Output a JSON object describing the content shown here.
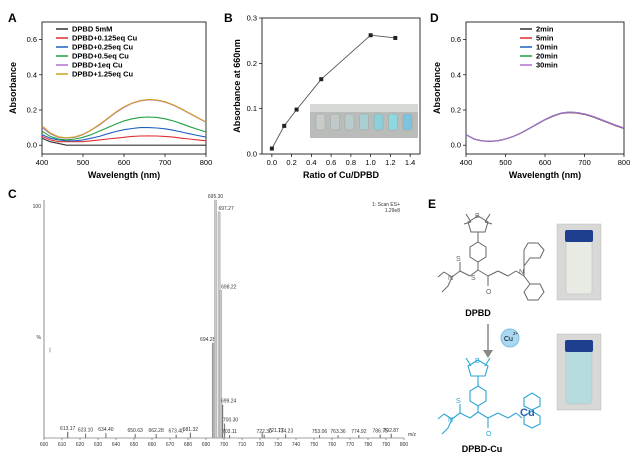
{
  "chart_data": [
    {
      "panel": "A",
      "type": "line",
      "xlabel": "Wavelength (nm)",
      "ylabel": "Absorbance",
      "xlim": [
        400,
        800
      ],
      "ylim": [
        -0.05,
        0.7
      ],
      "xticks": [
        "400",
        "500",
        "600",
        "700",
        "800"
      ],
      "yticks": [
        "0.0",
        "0.2",
        "0.4",
        "0.6"
      ],
      "legend_position": "top-left",
      "series": [
        {
          "name": "DPBD 5mM",
          "color": "#333333",
          "x": [
            400,
            420,
            440,
            460,
            480,
            500,
            520,
            540,
            560,
            580,
            600,
            620,
            640,
            660,
            680,
            700,
            720,
            740,
            760,
            780,
            800
          ],
          "values": [
            0.04,
            0.02,
            0.01,
            0.0,
            0.0,
            0.0,
            0.0,
            0.0,
            0.0,
            0.0,
            0.0,
            0.0,
            0.0,
            0.0,
            0.0,
            0.0,
            0.0,
            0.0,
            0.0,
            0.0,
            0.0
          ]
        },
        {
          "name": "DPBD+0.125eq Cu",
          "color": "#e03030",
          "x": [
            400,
            420,
            440,
            460,
            480,
            500,
            520,
            540,
            560,
            580,
            600,
            620,
            640,
            660,
            680,
            700,
            720,
            740,
            760,
            780,
            800
          ],
          "values": [
            0.05,
            0.03,
            0.02,
            0.02,
            0.02,
            0.02,
            0.025,
            0.03,
            0.035,
            0.04,
            0.045,
            0.05,
            0.052,
            0.053,
            0.052,
            0.05,
            0.046,
            0.04,
            0.035,
            0.03,
            0.025
          ]
        },
        {
          "name": "DPBD+0.25eq Cu",
          "color": "#2060c0",
          "x": [
            400,
            420,
            440,
            460,
            480,
            500,
            520,
            540,
            560,
            580,
            600,
            620,
            640,
            660,
            680,
            700,
            720,
            740,
            760,
            780,
            800
          ],
          "values": [
            0.06,
            0.04,
            0.03,
            0.025,
            0.025,
            0.03,
            0.04,
            0.05,
            0.065,
            0.078,
            0.088,
            0.095,
            0.1,
            0.1,
            0.098,
            0.093,
            0.085,
            0.075,
            0.065,
            0.055,
            0.046
          ]
        },
        {
          "name": "DPBD+0.5eq Cu",
          "color": "#20a040",
          "x": [
            400,
            420,
            440,
            460,
            480,
            500,
            520,
            540,
            560,
            580,
            600,
            620,
            640,
            660,
            680,
            700,
            720,
            740,
            760,
            780,
            800
          ],
          "values": [
            0.08,
            0.05,
            0.035,
            0.03,
            0.035,
            0.045,
            0.06,
            0.08,
            0.1,
            0.12,
            0.138,
            0.15,
            0.158,
            0.16,
            0.158,
            0.15,
            0.138,
            0.122,
            0.105,
            0.09,
            0.075
          ]
        },
        {
          "name": "DPBD+1eq Cu",
          "color": "#b070d0",
          "x": [
            400,
            420,
            440,
            460,
            480,
            500,
            520,
            540,
            560,
            580,
            600,
            620,
            640,
            660,
            680,
            700,
            720,
            740,
            760,
            780,
            800
          ],
          "values": [
            0.1,
            0.065,
            0.045,
            0.04,
            0.045,
            0.06,
            0.085,
            0.115,
            0.15,
            0.185,
            0.215,
            0.238,
            0.252,
            0.258,
            0.255,
            0.245,
            0.228,
            0.205,
            0.18,
            0.155,
            0.13
          ]
        },
        {
          "name": "DPBD+1.25eq Cu",
          "color": "#d0a020",
          "x": [
            400,
            420,
            440,
            460,
            480,
            500,
            520,
            540,
            560,
            580,
            600,
            620,
            640,
            660,
            680,
            700,
            720,
            740,
            760,
            780,
            800
          ],
          "values": [
            0.11,
            0.07,
            0.048,
            0.042,
            0.047,
            0.062,
            0.087,
            0.118,
            0.153,
            0.188,
            0.218,
            0.24,
            0.254,
            0.26,
            0.257,
            0.247,
            0.23,
            0.207,
            0.182,
            0.157,
            0.132
          ]
        }
      ]
    },
    {
      "panel": "B",
      "type": "scatter",
      "xlabel": "Ratio of Cu/DPBD",
      "ylabel": "Absorbance at 660nm",
      "xlim": [
        -0.1,
        1.5
      ],
      "ylim": [
        0.0,
        0.3
      ],
      "xticks": [
        "0.0",
        "0.2",
        "0.4",
        "0.6",
        "0.8",
        "1.0",
        "1.2",
        "1.4"
      ],
      "yticks": [
        "0.0",
        "0.1",
        "0.2",
        "0.3"
      ],
      "series": [
        {
          "name": "A660",
          "color": "#333333",
          "x": [
            0.0,
            0.125,
            0.25,
            0.5,
            1.0,
            1.25
          ],
          "values": [
            0.012,
            0.062,
            0.098,
            0.165,
            0.262,
            0.256
          ]
        }
      ],
      "inset_vial_colors": [
        "#c8ccc8",
        "#c0c8c8",
        "#b8cccc",
        "#a8d0d0",
        "#8ccfd8",
        "#90d8e0",
        "#7cc4e0"
      ]
    },
    {
      "panel": "D",
      "type": "line",
      "xlabel": "Wavelength (nm)",
      "ylabel": "Absorbance",
      "xlim": [
        400,
        800
      ],
      "ylim": [
        -0.05,
        0.7
      ],
      "xticks": [
        "400",
        "500",
        "600",
        "700",
        "800"
      ],
      "yticks": [
        "0.0",
        "0.2",
        "0.4",
        "0.6"
      ],
      "legend_position": "top-right",
      "series": [
        {
          "name": "2min",
          "color": "#333333",
          "x": [
            400,
            420,
            440,
            460,
            480,
            500,
            520,
            540,
            560,
            580,
            600,
            620,
            640,
            660,
            680,
            700,
            720,
            740,
            760,
            780,
            800
          ],
          "values": [
            0.06,
            0.035,
            0.025,
            0.022,
            0.025,
            0.035,
            0.05,
            0.07,
            0.095,
            0.12,
            0.145,
            0.165,
            0.18,
            0.185,
            0.183,
            0.175,
            0.162,
            0.145,
            0.127,
            0.11,
            0.095
          ]
        },
        {
          "name": "5min",
          "color": "#e03030",
          "x": [
            400,
            420,
            440,
            460,
            480,
            500,
            520,
            540,
            560,
            580,
            600,
            620,
            640,
            660,
            680,
            700,
            720,
            740,
            760,
            780,
            800
          ],
          "values": [
            0.06,
            0.035,
            0.025,
            0.022,
            0.025,
            0.035,
            0.05,
            0.07,
            0.095,
            0.12,
            0.145,
            0.165,
            0.18,
            0.186,
            0.184,
            0.176,
            0.163,
            0.146,
            0.128,
            0.111,
            0.096
          ]
        },
        {
          "name": "10min",
          "color": "#2060c0",
          "x": [
            400,
            420,
            440,
            460,
            480,
            500,
            520,
            540,
            560,
            580,
            600,
            620,
            640,
            660,
            680,
            700,
            720,
            740,
            760,
            780,
            800
          ],
          "values": [
            0.06,
            0.035,
            0.025,
            0.022,
            0.025,
            0.035,
            0.05,
            0.07,
            0.095,
            0.12,
            0.145,
            0.166,
            0.181,
            0.187,
            0.185,
            0.177,
            0.164,
            0.147,
            0.129,
            0.112,
            0.097
          ]
        },
        {
          "name": "20min",
          "color": "#20a040",
          "x": [
            400,
            420,
            440,
            460,
            480,
            500,
            520,
            540,
            560,
            580,
            600,
            620,
            640,
            660,
            680,
            700,
            720,
            740,
            760,
            780,
            800
          ],
          "values": [
            0.06,
            0.035,
            0.025,
            0.022,
            0.025,
            0.035,
            0.05,
            0.07,
            0.095,
            0.121,
            0.146,
            0.167,
            0.182,
            0.188,
            0.186,
            0.178,
            0.165,
            0.148,
            0.13,
            0.113,
            0.098
          ]
        },
        {
          "name": "30min",
          "color": "#b070d0",
          "x": [
            400,
            420,
            440,
            460,
            480,
            500,
            520,
            540,
            560,
            580,
            600,
            620,
            640,
            660,
            680,
            700,
            720,
            740,
            760,
            780,
            800
          ],
          "values": [
            0.06,
            0.035,
            0.025,
            0.022,
            0.025,
            0.035,
            0.05,
            0.07,
            0.095,
            0.121,
            0.146,
            0.167,
            0.182,
            0.188,
            0.186,
            0.178,
            0.165,
            0.148,
            0.13,
            0.113,
            0.098
          ]
        }
      ]
    },
    {
      "panel": "C",
      "type": "bar",
      "xlabel": "m/z",
      "xlim": [
        600,
        800
      ],
      "ylim": [
        0,
        100
      ],
      "xticks": [
        "600",
        "610",
        "620",
        "630",
        "640",
        "650",
        "660",
        "670",
        "680",
        "690",
        "700",
        "710",
        "720",
        "730",
        "740",
        "750",
        "760",
        "770",
        "780",
        "790",
        "800"
      ],
      "ytick_top": "100",
      "ylabel_mark": "%",
      "header_right": "1: Scan ES+",
      "header_right2": "1.29e8",
      "left_top_label": "100",
      "peaks": [
        {
          "mz": 613.17,
          "label": "613.17",
          "value": 2.5
        },
        {
          "mz": 623.1,
          "label": "623.10",
          "value": 1.8
        },
        {
          "mz": 634.4,
          "label": "634.40",
          "value": 2.0
        },
        {
          "mz": 650.63,
          "label": "650.63",
          "value": 1.6
        },
        {
          "mz": 662.28,
          "label": "662.28",
          "value": 1.6
        },
        {
          "mz": 673.4,
          "label": "673.40",
          "value": 1.4
        },
        {
          "mz": 681.32,
          "label": "681.32",
          "value": 2.2
        },
        {
          "mz": 694.28,
          "label": "694.28",
          "value": 40
        },
        {
          "mz": 695.3,
          "label": "695.30",
          "value": 100
        },
        {
          "mz": 697.27,
          "label": "697.27",
          "value": 95
        },
        {
          "mz": 698.22,
          "label": "698.22",
          "value": 62
        },
        {
          "mz": 699.24,
          "label": "699.24",
          "value": 14
        },
        {
          "mz": 700.3,
          "label": "700.30",
          "value": 6
        },
        {
          "mz": 703.11,
          "label": "703.11",
          "value": 1.2
        },
        {
          "mz": 722.3,
          "label": "722.30",
          "value": 1.3
        },
        {
          "mz": 721.17,
          "label": "721.17",
          "value": 2.2
        },
        {
          "mz": 734.23,
          "label": "734.23",
          "value": 1.5
        },
        {
          "mz": 753.06,
          "label": "753.06",
          "value": 1.2
        },
        {
          "mz": 763.36,
          "label": "763.36",
          "value": 1.2
        },
        {
          "mz": 774.92,
          "label": "774.92",
          "value": 1.2
        },
        {
          "mz": 786.75,
          "label": "786.75",
          "value": 1.4
        },
        {
          "mz": 792.87,
          "label": "792.87",
          "value": 1.7
        }
      ]
    }
  ],
  "panels": {
    "a": "A",
    "b": "B",
    "c": "C",
    "d": "D",
    "e": "E"
  },
  "panel_e": {
    "label_top": "DPBD",
    "label_bottom": "DPBD-Cu",
    "cu_ion": "Cu",
    "cu_charge": "2+",
    "cu_center": "Cu",
    "atoms": {
      "b": "B",
      "s": "S",
      "n": "N",
      "o": "O"
    },
    "vial_top_color": "#e8ebe3",
    "vial_bottom_color": "#b7dcdf"
  }
}
